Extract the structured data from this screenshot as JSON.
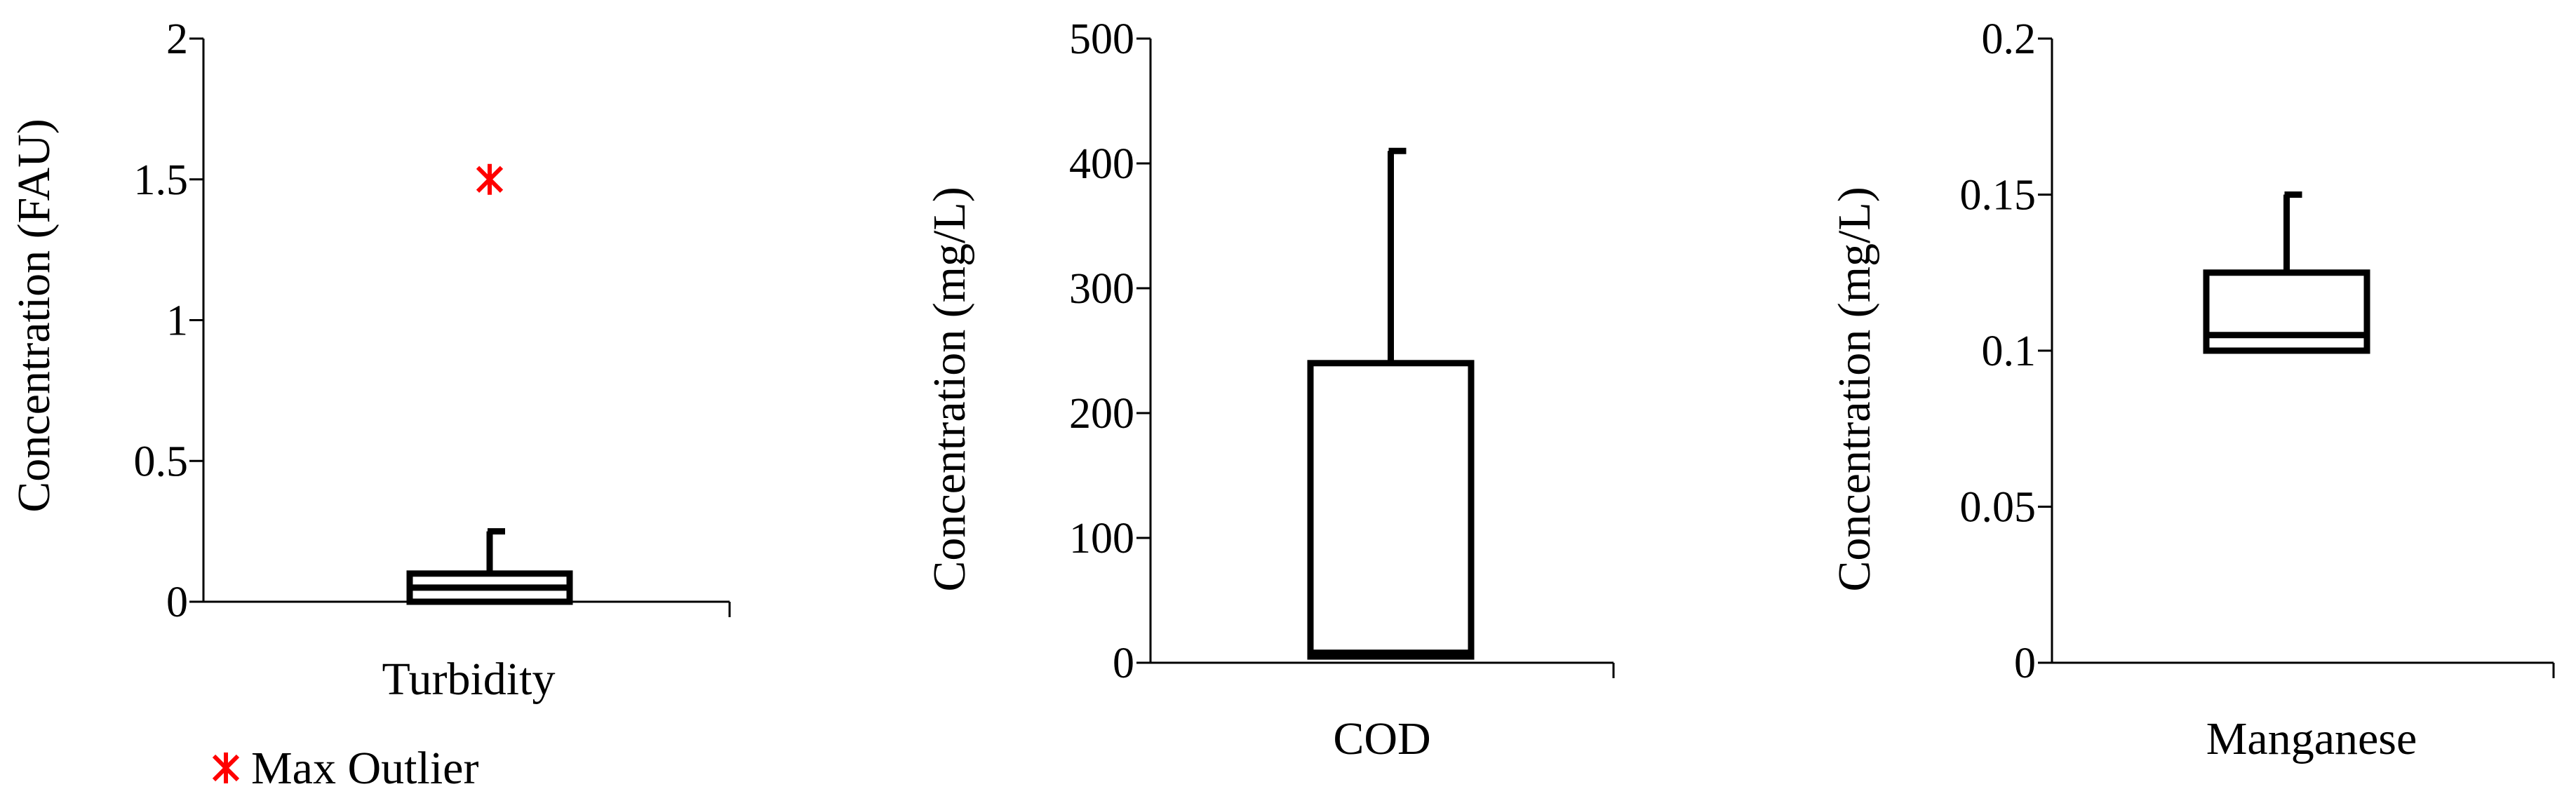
{
  "chart_data": [
    {
      "type": "box",
      "category": "Turbidity",
      "ylabel": "Concentration (FAU)",
      "ylim": [
        0,
        2
      ],
      "yticks": [
        "0",
        "0.5",
        "1",
        "1.5",
        "2"
      ],
      "ytick_values": [
        0,
        0.5,
        1,
        1.5,
        2
      ],
      "box": {
        "whisker_low": 0,
        "q1": 0,
        "median": 0.05,
        "q3": 0.1,
        "whisker_high": 0.25
      },
      "outliers": [
        1.5
      ]
    },
    {
      "type": "box",
      "category": "COD",
      "ylabel": "Concentration (mg/L)",
      "ylim": [
        0,
        500
      ],
      "yticks": [
        "0",
        "100",
        "200",
        "300",
        "400",
        "500"
      ],
      "ytick_values": [
        0,
        100,
        200,
        300,
        400,
        500
      ],
      "box": {
        "whisker_low": 5,
        "q1": 5,
        "median": 8,
        "q3": 240,
        "whisker_high": 410
      },
      "outliers": []
    },
    {
      "type": "box",
      "category": "Manganese",
      "ylabel": "Concentration (mg/L)",
      "ylim": [
        0,
        0.2
      ],
      "yticks": [
        "0",
        "0.05",
        "0.1",
        "0.15",
        "0.2"
      ],
      "ytick_values": [
        0,
        0.05,
        0.1,
        0.15,
        0.2
      ],
      "box": {
        "whisker_low": 0.1,
        "q1": 0.1,
        "median": 0.105,
        "q3": 0.125,
        "whisker_high": 0.15
      },
      "outliers": []
    }
  ],
  "legend": {
    "outlier_label": "Max Outlier",
    "outlier_color": "#ff0000",
    "placement": "bottom-left"
  },
  "style": {
    "stroke_color": "#000000"
  }
}
